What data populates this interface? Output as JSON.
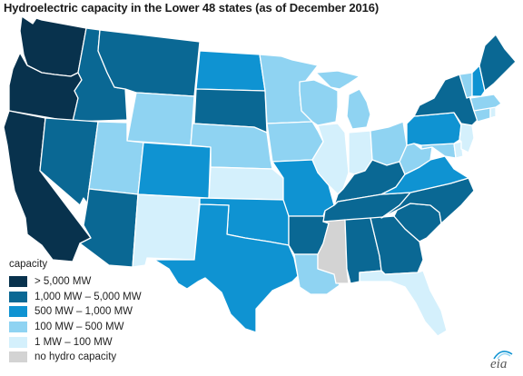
{
  "title": "Hydroelectric capacity in the Lower 48 states (as of December 2016)",
  "legend": {
    "title": "capacity",
    "items": [
      {
        "label": "> 5,000 MW",
        "color": "#08324d"
      },
      {
        "label": "1,000 MW – 5,000 MW",
        "color": "#0a6894"
      },
      {
        "label": "500 MW – 1,000 MW",
        "color": "#0f93d2"
      },
      {
        "label": "100 MW – 500 MW",
        "color": "#8fd3f2"
      },
      {
        "label": "1 MW – 100 MW",
        "color": "#d4f0fc"
      },
      {
        "label": "no hydro capacity",
        "color": "#d3d3d3"
      }
    ]
  },
  "logo": {
    "text": "eia"
  },
  "state_categories": {
    "WA": 0,
    "OR": 0,
    "CA": 0,
    "ID": 1,
    "MT": 1,
    "NV": 1,
    "AZ": 1,
    "SD": 1,
    "AR": 1,
    "AL": 1,
    "GA": 1,
    "TN": 1,
    "NC": 1,
    "SC": 1,
    "NY": 1,
    "KY": 1,
    "ME": 1,
    "CO": 2,
    "ND": 2,
    "OK": 2,
    "TX": 2,
    "MO": 2,
    "PA": 2,
    "VA": 2,
    "NH": 2,
    "UT": 3,
    "WY": 3,
    "NE": 3,
    "MN": 3,
    "WI": 3,
    "IA": 3,
    "MI": 3,
    "OH": 3,
    "WV": 3,
    "LA": 3,
    "VT": 3,
    "MA": 3,
    "MD": 3,
    "CT": 3,
    "NM": 4,
    "KS": 4,
    "IL": 4,
    "IN": 4,
    "FL": 4,
    "NJ": 4,
    "DE": 4,
    "RI": 4,
    "MS": 5
  }
}
